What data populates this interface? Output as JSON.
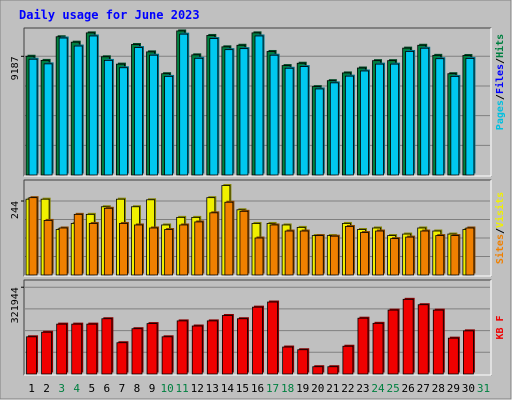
{
  "chart_data": {
    "title": "Daily usage for June 2023",
    "type": "bar",
    "categories": [
      "1",
      "2",
      "3",
      "4",
      "5",
      "6",
      "7",
      "8",
      "9",
      "10",
      "11",
      "12",
      "13",
      "14",
      "15",
      "16",
      "17",
      "18",
      "19",
      "20",
      "21",
      "22",
      "23",
      "24",
      "25",
      "26",
      "27",
      "28",
      "29",
      "30",
      "31"
    ],
    "weekend_days": [
      "3",
      "4",
      "10",
      "11",
      "17",
      "18",
      "24",
      "25",
      "31"
    ],
    "panels": [
      {
        "id": "hits",
        "type": "bar",
        "ylabel_parts": [
          "Pages",
          "Files",
          "Hits"
        ],
        "y_tick_label": "9187",
        "y_tick_value": 9187,
        "ylim": [
          0,
          11300
        ],
        "series": [
          {
            "name": "Hits",
            "color": "#008040",
            "values": [
              9190,
              8870,
              10700,
              10280,
              11000,
              9150,
              8580,
              10100,
              9530,
              7840,
              11150,
              9300,
              10800,
              9920,
              10040,
              11000,
              9560,
              8470,
              8650,
              6840,
              7300,
              7900,
              8280,
              8850,
              8850,
              9820,
              10040,
              9260,
              7840,
              9250
            ]
          },
          {
            "name": "Files",
            "color": "#00c8f0",
            "values": [
              8960,
              8600,
              10600,
              9980,
              10760,
              8870,
              8300,
              9860,
              9270,
              7630,
              10900,
              9030,
              10560,
              9700,
              9780,
              10760,
              9270,
              8260,
              8390,
              6660,
              7130,
              7650,
              8050,
              8580,
              8580,
              9560,
              9810,
              9000,
              7630,
              9020
            ]
          }
        ]
      },
      {
        "id": "visits",
        "type": "bar",
        "ylabel_parts": [
          "Sites",
          "Visits"
        ],
        "y_tick_label": "244",
        "y_tick_value": 244,
        "ylim": [
          0,
          310
        ],
        "series": [
          {
            "name": "Visits",
            "color": "#f0f000",
            "values": [
              250,
              250,
              150,
              170,
              200,
              225,
              250,
              225,
              248,
              165,
              190,
              190,
              255,
              295,
              215,
              170,
              170,
              165,
              157,
              130,
              130,
              170,
              150,
              155,
              130,
              135,
              155,
              145,
              135,
              150
            ]
          },
          {
            "name": "Sites",
            "color": "#f08000",
            "values": [
              255,
              180,
              155,
              200,
              170,
              220,
              170,
              165,
              155,
              150,
              165,
              175,
              205,
              240,
              210,
              122,
              165,
              145,
              145,
              130,
              128,
              160,
              140,
              145,
              120,
              125,
              145,
              130,
              130,
              155
            ]
          }
        ]
      },
      {
        "id": "kbytes",
        "type": "bar",
        "ylabel_parts": [
          "KB F"
        ],
        "y_tick_label": "321944",
        "y_tick_value": 321944,
        "ylim": [
          0,
          345000
        ],
        "series": [
          {
            "name": "KB F",
            "color": "#f00000",
            "values": [
              138000,
              155000,
              185000,
              185000,
              185000,
              205000,
              116000,
              168000,
              187000,
              138000,
              197000,
              178000,
              197000,
              217000,
              205000,
              248000,
              267000,
              100000,
              90000,
              27000,
              27000,
              103000,
              207000,
              188000,
              237000,
              277000,
              257000,
              237000,
              133000,
              160000
            ]
          }
        ]
      }
    ]
  }
}
